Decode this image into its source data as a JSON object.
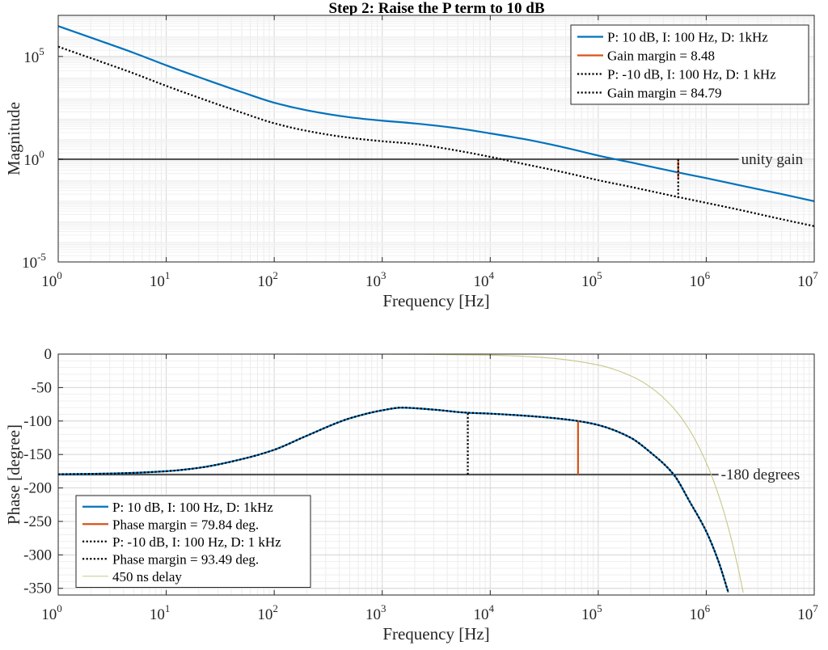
{
  "chart_data": [
    {
      "type": "line",
      "title": "Step 2: Raise the P term to 10 dB",
      "xlabel": "Frequency [Hz]",
      "ylabel": "Magnitude",
      "xscale": "log",
      "yscale": "log",
      "xlim": [
        1,
        10000000
      ],
      "ylim": [
        1e-05,
        10000000
      ],
      "grid": true,
      "legend_position": "top-right",
      "x_tick_labels": [
        {
          "base": "10",
          "exp": "0"
        },
        {
          "base": "10",
          "exp": "1"
        },
        {
          "base": "10",
          "exp": "2"
        },
        {
          "base": "10",
          "exp": "3"
        },
        {
          "base": "10",
          "exp": "4"
        },
        {
          "base": "10",
          "exp": "5"
        },
        {
          "base": "10",
          "exp": "6"
        },
        {
          "base": "10",
          "exp": "7"
        }
      ],
      "y_tick_labels": [
        {
          "base": "10",
          "exp": "-5",
          "value": 1e-05
        },
        {
          "base": "10",
          "exp": "0",
          "value": 1
        },
        {
          "base": "10",
          "exp": "5",
          "value": 100000
        }
      ],
      "series": [
        {
          "name": "P: 10 dB, I: 100 Hz, D: 1kHz",
          "color": "#0072BD",
          "style": "solid",
          "x": [
            1,
            2,
            5,
            10,
            20,
            50,
            100,
            200,
            500,
            1000,
            2000,
            5000,
            10000,
            20000,
            50000,
            100000,
            200000,
            500000,
            1000000,
            2000000,
            5000000,
            10000000
          ],
          "y": [
            3000000,
            830000,
            150000,
            37000,
            9900,
            1850,
            560,
            240,
            110,
            75,
            55,
            32,
            18,
            9.8,
            3.6,
            1.5,
            0.7,
            0.25,
            0.12,
            0.055,
            0.02,
            0.009
          ]
        },
        {
          "name": "Gain margin = 8.48",
          "color": "#D95319",
          "style": "solid",
          "x": [
            550000,
            550000
          ],
          "y": [
            1,
            0.118
          ]
        },
        {
          "name": "P: -10 dB, I: 100 Hz, D: 1 kHz",
          "color": "#000000",
          "style": "dotted",
          "x": [
            1,
            2,
            5,
            10,
            20,
            50,
            100,
            200,
            500,
            1000,
            2000,
            5000,
            10000,
            20000,
            50000,
            100000,
            200000,
            500000,
            1000000,
            2000000,
            5000000,
            10000000
          ],
          "y": [
            300000,
            83000,
            15000,
            3700,
            990,
            185,
            56,
            24,
            11,
            7.5,
            5.5,
            2.6,
            1.3,
            0.6,
            0.22,
            0.095,
            0.045,
            0.016,
            0.0075,
            0.0035,
            0.0012,
            0.00055
          ]
        },
        {
          "name": "Gain margin = 84.79",
          "color": "#000000",
          "style": "dotted",
          "x": [
            550000,
            550000
          ],
          "y": [
            1,
            0.0118
          ]
        }
      ],
      "reference_lines": [
        {
          "label": "unity gain",
          "y": 1,
          "color": "#555555",
          "x_end": 2000000
        }
      ]
    },
    {
      "type": "line",
      "title": "",
      "xlabel": "Frequency [Hz]",
      "ylabel": "Phase [degree]",
      "xscale": "log",
      "yscale": "linear",
      "xlim": [
        1,
        10000000
      ],
      "ylim": [
        -360,
        0
      ],
      "grid": true,
      "legend_position": "bottom-left",
      "x_tick_labels": [
        {
          "base": "10",
          "exp": "0"
        },
        {
          "base": "10",
          "exp": "1"
        },
        {
          "base": "10",
          "exp": "2"
        },
        {
          "base": "10",
          "exp": "3"
        },
        {
          "base": "10",
          "exp": "4"
        },
        {
          "base": "10",
          "exp": "5"
        },
        {
          "base": "10",
          "exp": "6"
        },
        {
          "base": "10",
          "exp": "7"
        }
      ],
      "y_ticks": [
        0,
        -50,
        -100,
        -150,
        -200,
        -250,
        -300,
        -350
      ],
      "y_tick_labels": [
        "0",
        "-50",
        "-100",
        "-150",
        "-200",
        "-250",
        "-300",
        "-350"
      ],
      "series": [
        {
          "name": "P: 10 dB, I: 100 Hz, D: 1kHz",
          "color": "#0072BD",
          "style": "solid",
          "x": [
            1,
            3,
            10,
            20,
            50,
            100,
            200,
            500,
            1000,
            1500,
            3000,
            6000,
            10000,
            30000,
            65000,
            100000,
            200000,
            300000,
            500000,
            700000,
            1000000,
            1300000,
            1600000
          ],
          "y": [
            -179.5,
            -178.5,
            -175,
            -170,
            -157,
            -143,
            -122,
            -96,
            -84,
            -80,
            -83,
            -87.5,
            -89,
            -94,
            -100,
            -106,
            -125,
            -146,
            -180,
            -220,
            -265,
            -310,
            -356
          ]
        },
        {
          "name": "Phase margin = 79.84 deg.",
          "color": "#D95319",
          "style": "solid",
          "x": [
            65000,
            65000
          ],
          "y": [
            -180,
            -100.16
          ]
        },
        {
          "name": "P: -10 dB, I: 100 Hz, D: 1 kHz",
          "color": "#000000",
          "style": "dotted",
          "x": [
            1,
            3,
            10,
            20,
            50,
            100,
            200,
            500,
            1000,
            1500,
            3000,
            6000,
            10000,
            30000,
            65000,
            100000,
            200000,
            300000,
            500000,
            700000,
            1000000,
            1300000,
            1600000
          ],
          "y": [
            -179.5,
            -178.5,
            -175,
            -170,
            -157,
            -143,
            -122,
            -96,
            -84,
            -80,
            -83,
            -87.5,
            -89,
            -94,
            -100,
            -106,
            -125,
            -146,
            -180,
            -220,
            -265,
            -310,
            -356
          ]
        },
        {
          "name": "Phase margin = 93.49 deg.",
          "color": "#000000",
          "style": "dotted",
          "x": [
            6200,
            6200
          ],
          "y": [
            -180,
            -86.51
          ]
        },
        {
          "name": "450 ns delay",
          "color": "#C8C88A",
          "style": "thin",
          "x": [
            1,
            10,
            100,
            1000,
            10000,
            30000,
            100000,
            200000,
            300000,
            500000,
            700000,
            1000000,
            1300000,
            1600000,
            2000000,
            2200000
          ],
          "y": [
            0,
            0,
            0,
            -0.16,
            -1.6,
            -4.9,
            -16.2,
            -32.4,
            -48.6,
            -81,
            -113.4,
            -162,
            -210.6,
            -259.2,
            -324,
            -356.4
          ]
        }
      ],
      "reference_lines": [
        {
          "label": "-180 degrees",
          "y": -180,
          "color": "#555555",
          "x_end": 1300000
        }
      ]
    }
  ]
}
